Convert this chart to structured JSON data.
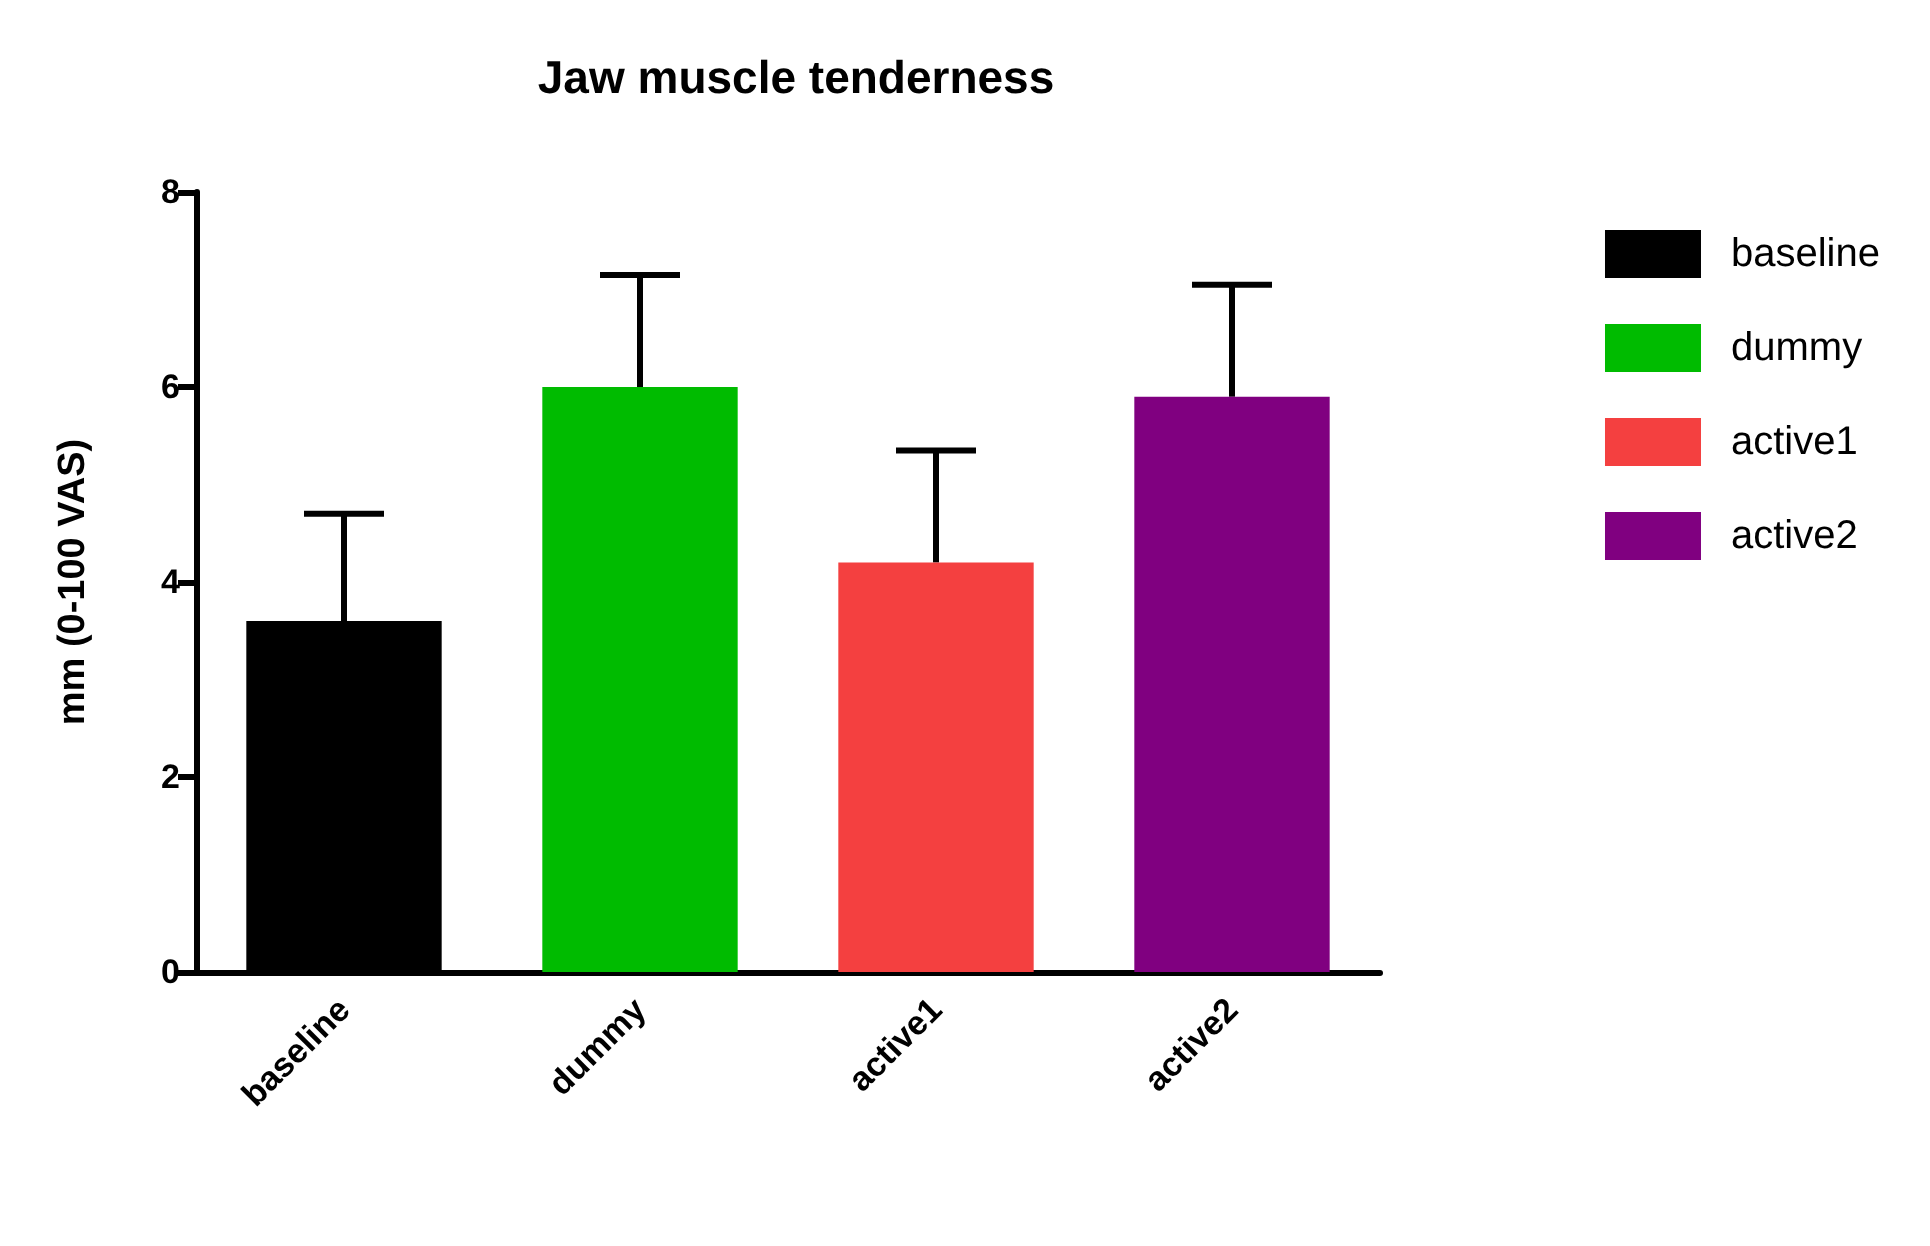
{
  "chart_data": {
    "type": "bar",
    "title": "Jaw muscle tenderness",
    "ylabel": "mm (0-100 VAS)",
    "categories": [
      "baseline",
      "dummy",
      "active1",
      "active2"
    ],
    "series": [
      {
        "name": "baseline",
        "color": "#000000",
        "values": [
          3.6,
          null,
          null,
          null
        ],
        "errors": [
          [
            3.6,
            4.7
          ],
          null,
          null,
          null
        ]
      },
      {
        "name": "dummy",
        "color": "#00bb00",
        "values": [
          null,
          6.0,
          null,
          null
        ],
        "errors": [
          null,
          [
            6.0,
            7.15
          ],
          null,
          null
        ]
      },
      {
        "name": "active1",
        "color": "#f44040",
        "values": [
          null,
          null,
          4.2,
          null
        ],
        "errors": [
          null,
          null,
          [
            4.2,
            5.35
          ],
          null
        ]
      },
      {
        "name": "active2",
        "color": "#800080",
        "values": [
          null,
          null,
          null,
          5.9
        ],
        "errors": [
          null,
          null,
          null,
          [
            5.9,
            7.05
          ]
        ]
      }
    ],
    "ylim": [
      0,
      8
    ],
    "yticks": [
      0,
      2,
      4,
      6,
      8
    ],
    "grid": false,
    "legend": "right"
  }
}
